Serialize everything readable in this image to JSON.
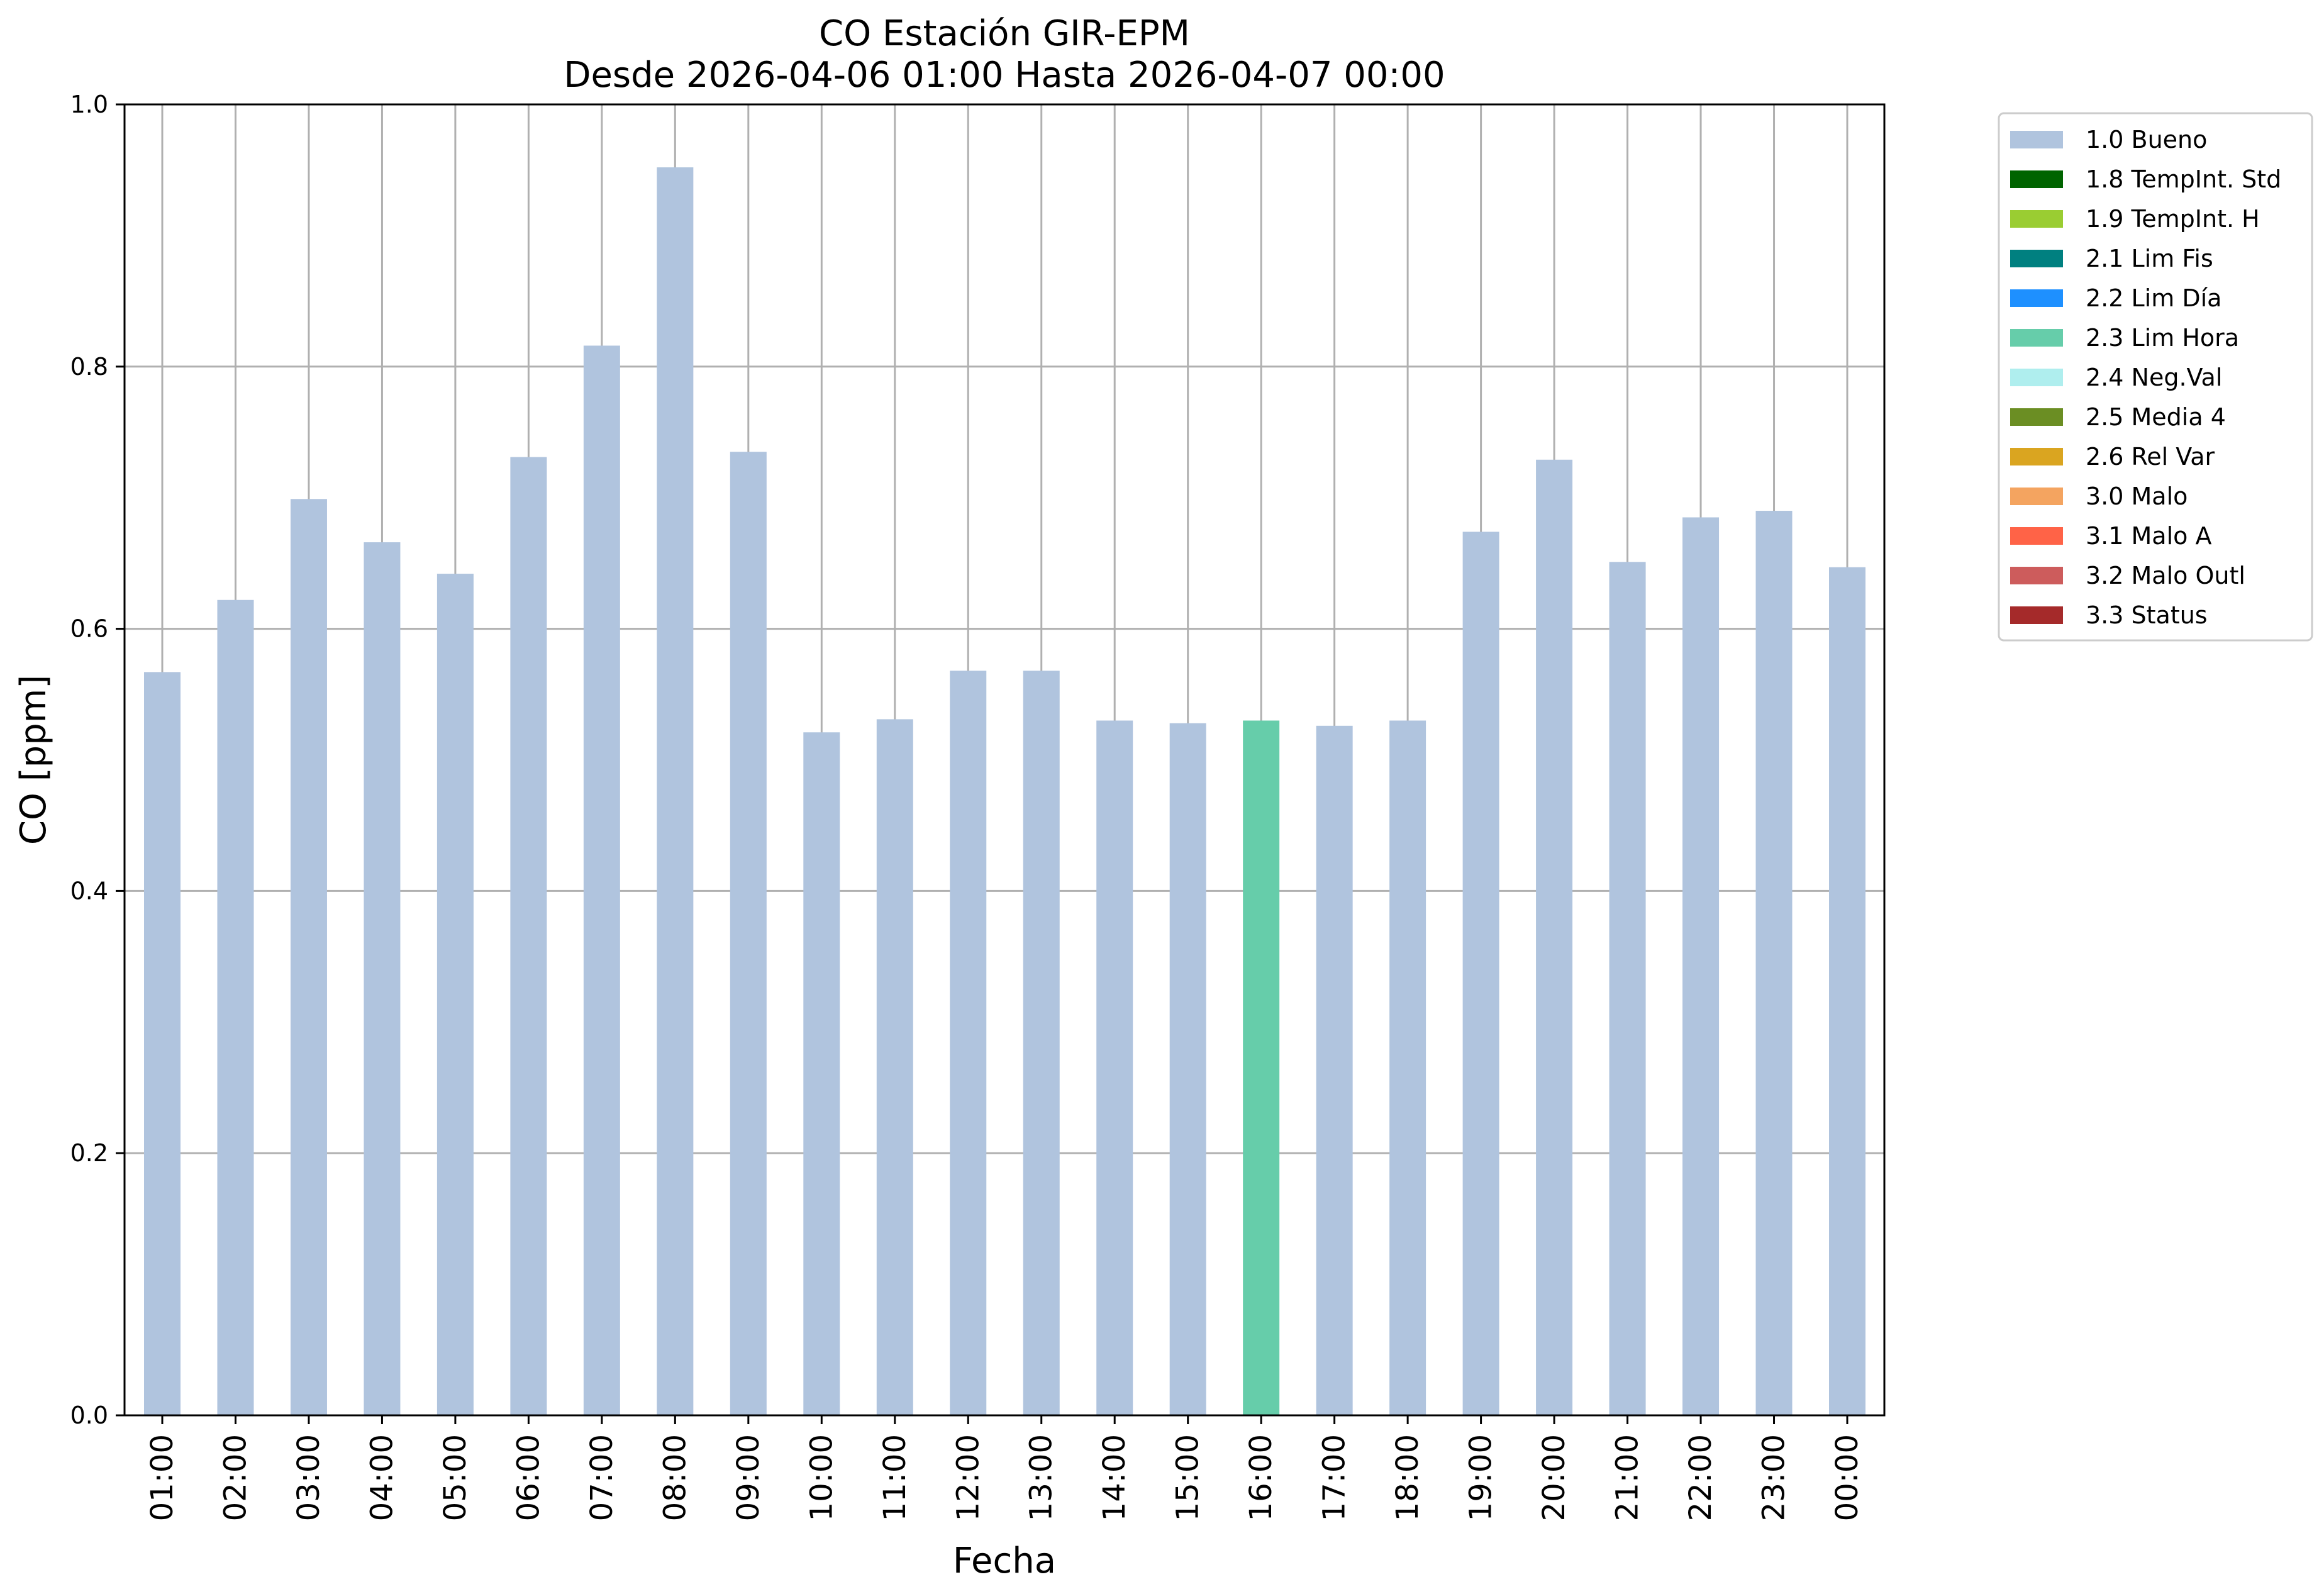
{
  "chart_data": {
    "type": "bar",
    "title": "CO Estación GIR-EPM",
    "subtitle": "Desde 2026-04-06 01:00 Hasta 2026-04-07 00:00",
    "xlabel": "Fecha",
    "ylabel": "CO [ppm]",
    "ylim": [
      0,
      1.0
    ],
    "yticks": [
      "0.0",
      "0.2",
      "0.4",
      "0.6",
      "0.8",
      "1.0"
    ],
    "grid": true,
    "legend_position": "outside-top-right",
    "categories": [
      "01:00",
      "02:00",
      "03:00",
      "04:00",
      "05:00",
      "06:00",
      "07:00",
      "08:00",
      "09:00",
      "10:00",
      "11:00",
      "12:00",
      "13:00",
      "14:00",
      "15:00",
      "16:00",
      "17:00",
      "18:00",
      "19:00",
      "20:00",
      "21:00",
      "22:00",
      "23:00",
      "00:00"
    ],
    "values": [
      0.567,
      0.622,
      0.699,
      0.666,
      0.642,
      0.731,
      0.816,
      0.952,
      0.735,
      0.521,
      0.531,
      0.568,
      0.568,
      0.53,
      0.528,
      0.53,
      0.526,
      0.53,
      0.674,
      0.729,
      0.651,
      0.685,
      0.69,
      0.647
    ],
    "flags": [
      "1.0 Bueno",
      "1.0 Bueno",
      "1.0 Bueno",
      "1.0 Bueno",
      "1.0 Bueno",
      "1.0 Bueno",
      "1.0 Bueno",
      "1.0 Bueno",
      "1.0 Bueno",
      "1.0 Bueno",
      "1.0 Bueno",
      "1.0 Bueno",
      "1.0 Bueno",
      "1.0 Bueno",
      "1.0 Bueno",
      "2.3 Lim Hora",
      "1.0 Bueno",
      "1.0 Bueno",
      "1.0 Bueno",
      "1.0 Bueno",
      "1.0 Bueno",
      "1.0 Bueno",
      "1.0 Bueno",
      "1.0 Bueno"
    ],
    "legend": [
      {
        "label": "1.0 Bueno",
        "color": "#b0c4de"
      },
      {
        "label": "1.8 TempInt. Std",
        "color": "#006400"
      },
      {
        "label": "1.9 TempInt. H",
        "color": "#9acd32"
      },
      {
        "label": "2.1 Lim Fis",
        "color": "#008080"
      },
      {
        "label": "2.2 Lim Día",
        "color": "#1e90ff"
      },
      {
        "label": "2.3 Lim Hora",
        "color": "#66cdaa"
      },
      {
        "label": "2.4 Neg.Val",
        "color": "#afeeee"
      },
      {
        "label": "2.5 Media 4",
        "color": "#6b8e23"
      },
      {
        "label": "2.6 Rel Var",
        "color": "#daa520"
      },
      {
        "label": "3.0 Malo",
        "color": "#f4a460"
      },
      {
        "label": "3.1 Malo A",
        "color": "#ff6347"
      },
      {
        "label": "3.2 Malo Outl",
        "color": "#cd5c5c"
      },
      {
        "label": "3.3 Status",
        "color": "#a52a2a"
      }
    ]
  }
}
